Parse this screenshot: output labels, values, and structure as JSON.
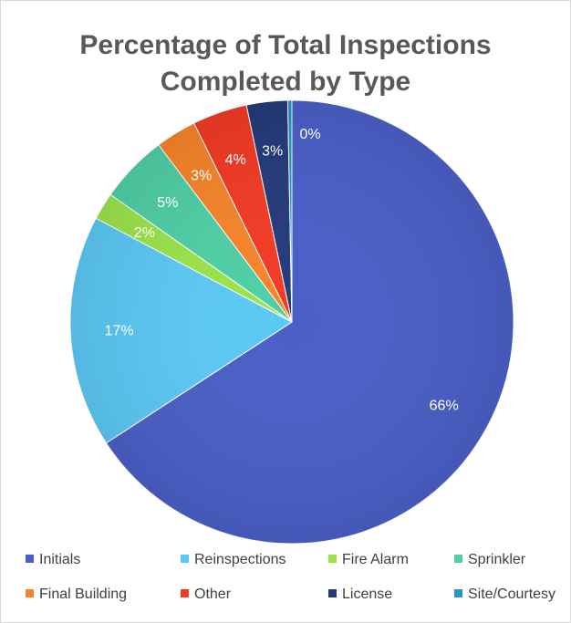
{
  "chart_data": {
    "type": "pie",
    "title": "Percentage of Total Inspections Completed by Type",
    "title_lines": [
      "Percentage of Total Inspections",
      "Completed by Type"
    ],
    "slices": [
      {
        "name": "Initials",
        "value": 66,
        "label": "66%",
        "color": "#4a5fc7"
      },
      {
        "name": "Reinspections",
        "value": 17,
        "label": "17%",
        "color": "#5bc8f5"
      },
      {
        "name": "Fire Alarm",
        "value": 2,
        "label": "2%",
        "color": "#9be34a"
      },
      {
        "name": "Sprinkler",
        "value": 5,
        "label": "5%",
        "color": "#4fcfa6"
      },
      {
        "name": "Final Building",
        "value": 3,
        "label": "3%",
        "color": "#f7842a"
      },
      {
        "name": "Other",
        "value": 4,
        "label": "4%",
        "color": "#f23a24"
      },
      {
        "name": "License",
        "value": 3,
        "label": "3%",
        "color": "#243a7a"
      },
      {
        "name": "Site/Courtesy",
        "value": 0.3,
        "label": "0%",
        "color": "#2496c8"
      }
    ],
    "legend_position": "bottom"
  }
}
